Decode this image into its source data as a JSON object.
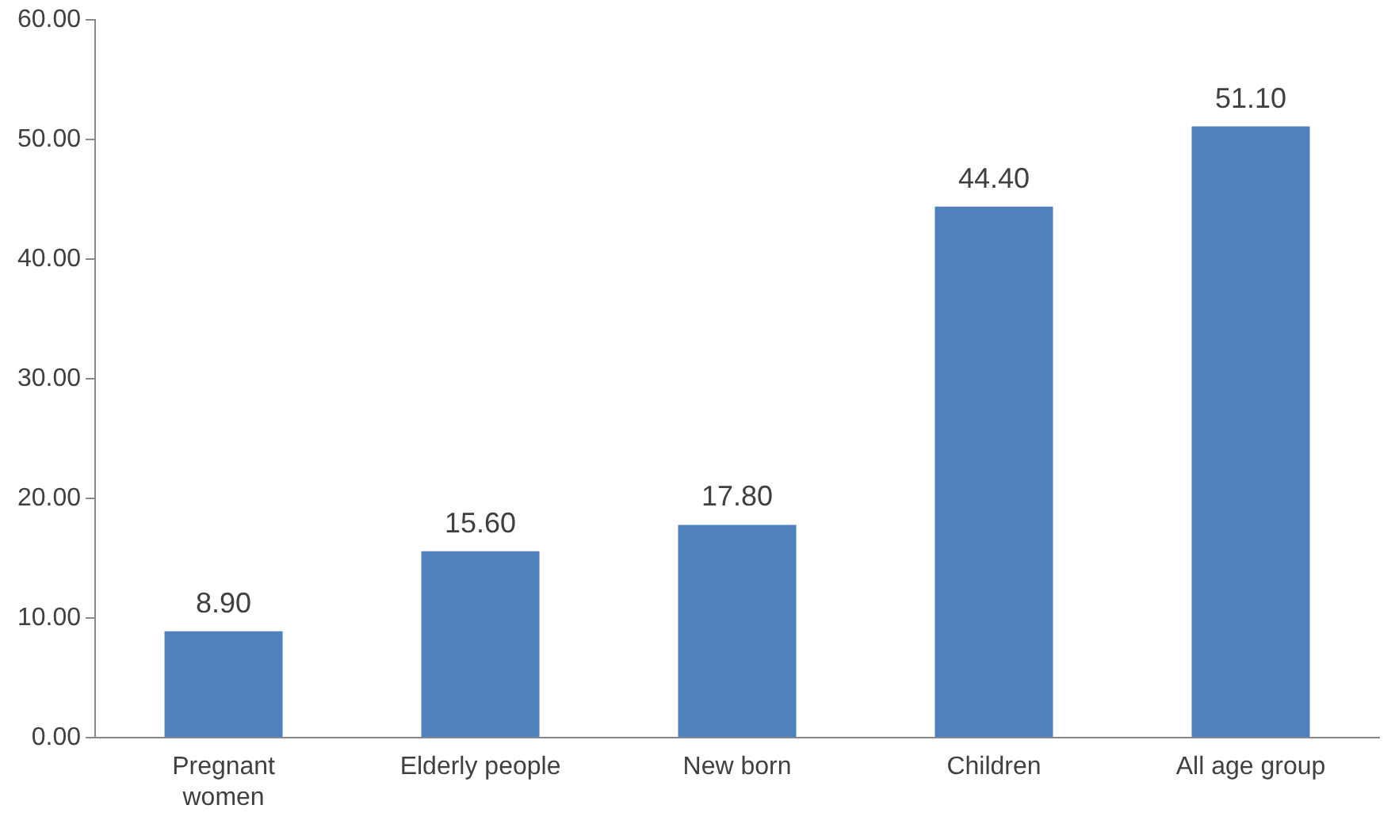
{
  "chart_data": {
    "type": "bar",
    "categories": [
      "Pregnant women",
      "Elderly people",
      "New born",
      "Children",
      "All age group"
    ],
    "values": [
      8.9,
      15.6,
      17.8,
      44.4,
      51.1
    ],
    "color": "#4f81bd",
    "value_labels": [
      "8.90",
      "15.60",
      "17.80",
      "44.40",
      "51.10"
    ],
    "ylim": [
      0,
      60
    ],
    "yticks": [
      {
        "value": 0,
        "label": "0.00"
      },
      {
        "value": 10,
        "label": "10.00"
      },
      {
        "value": 20,
        "label": "20.00"
      },
      {
        "value": 30,
        "label": "30.00"
      },
      {
        "value": 40,
        "label": "40.00"
      },
      {
        "value": 50,
        "label": "50.00"
      },
      {
        "value": 60,
        "label": "60.00"
      }
    ],
    "grid": false,
    "legend": false
  }
}
